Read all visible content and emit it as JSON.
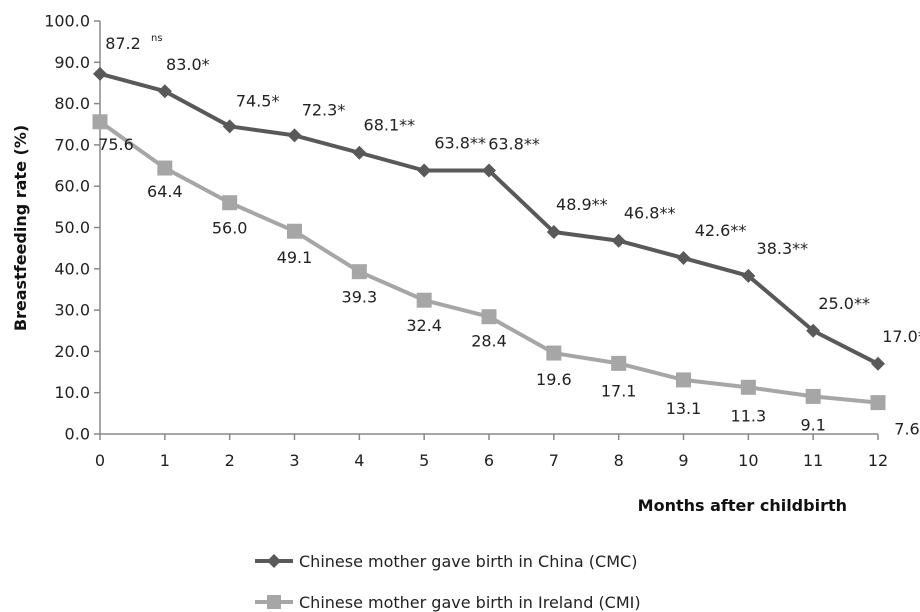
{
  "chart_data": {
    "type": "line",
    "xlabel": "Months after childbirth",
    "ylabel": "Breastfeeding rate (%)",
    "xlim": [
      0,
      12
    ],
    "ylim": [
      0,
      100
    ],
    "grid": false,
    "legend_position": "bottom",
    "x_tick_labels": [
      "0",
      "1",
      "2",
      "3",
      "4",
      "5",
      "6",
      "7",
      "8",
      "9",
      "10",
      "11",
      "12"
    ],
    "y_tick_labels": [
      "0.0",
      "10.0",
      "20.0",
      "30.0",
      "40.0",
      "50.0",
      "60.0",
      "70.0",
      "80.0",
      "90.0",
      "100.0"
    ],
    "x": [
      0,
      1,
      2,
      3,
      4,
      5,
      6,
      7,
      8,
      9,
      10,
      11,
      12
    ],
    "series": [
      {
        "name": "Chinese mother gave birth in China (CMC)",
        "marker": "diamond",
        "color": "#595959",
        "values": [
          87.2,
          83.0,
          74.5,
          72.3,
          68.1,
          63.8,
          63.8,
          48.9,
          46.8,
          42.6,
          38.3,
          25.0,
          17.0
        ],
        "data_labels": [
          "87.2",
          "83.0*",
          "74.5*",
          "72.3*",
          "68.1**",
          "63.8**",
          "63.8**",
          "48.9**",
          "46.8**",
          "42.6**",
          "38.3**",
          "25.0**",
          "17.0**"
        ],
        "first_label_superscript": "ns"
      },
      {
        "name": "Chinese mother gave birth in Ireland (CMI)",
        "marker": "square",
        "color": "#a6a6a6",
        "values": [
          75.6,
          64.4,
          56.0,
          49.1,
          39.3,
          32.4,
          28.4,
          19.6,
          17.1,
          13.1,
          11.3,
          9.1,
          7.6
        ],
        "data_labels": [
          "75.6",
          "64.4",
          "56.0",
          "49.1",
          "39.3",
          "32.4",
          "28.4",
          "19.6",
          "17.1",
          "13.1",
          "11.3",
          "9.1",
          "7.6"
        ]
      }
    ]
  }
}
